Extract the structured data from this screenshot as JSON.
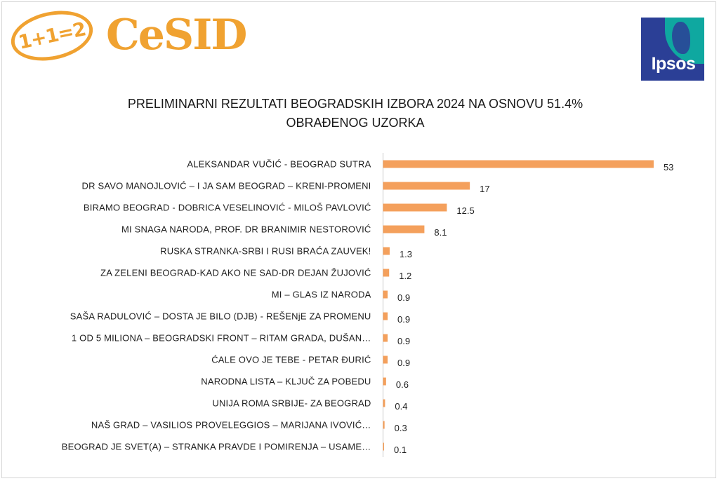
{
  "logos": {
    "left_badge_text": "1+1=2",
    "left_word": "CeSID",
    "right_text": "Ipsos"
  },
  "colors": {
    "bar": "#f4a05c",
    "brand_orange": "#f0a231",
    "ipsos_blue": "#2b3f96",
    "ipsos_teal": "#0fa8a0"
  },
  "chart_data": {
    "type": "bar",
    "orientation": "horizontal",
    "title": "PRELIMINARNI REZULTATI BEOGRADSKIH IZBORA 2024 NA OSNOVU 51.4% OBRAĐENOG UZORKA",
    "title_lines": [
      "PRELIMINARNI REZULTATI BEOGRADSKIH IZBORA 2024 NA OSNOVU 51.4%",
      "OBRAĐENOG UZORKA"
    ],
    "xlim": [
      0,
      55
    ],
    "grid": false,
    "legend": "none",
    "categories": [
      "ALEKSANDAR VUČIĆ - BEOGRAD SUTRA",
      "DR SAVO MANOJLOVIĆ – I JA SAM BEOGRAD – KRENI-PROMENI",
      "BIRAMO BEOGRAD - DOBRICA VESELINOVIĆ - MILOŠ PAVLOVIĆ",
      "MI SNAGA NARODA, PROF. DR BRANIMIR NESTOROVIĆ",
      "RUSKA STRANKA-SRBI I RUSI BRAĆA ZAUVEK!",
      "ZA ZELENI BEOGRAD-KAD AKO NE SAD-DR DEJAN ŽUJOVIĆ",
      "MI – GLAS IZ NARODA",
      "SAŠA RADULOVIĆ – DOSTA JE BILO (DJB) - REŠENjE ZA PROMENU",
      "1 OD 5 MILIONA – BEOGRADSKI FRONT – RITAM GRADA, DUŠAN…",
      "ĆALE OVO JE TEBE - PETAR ĐURIĆ",
      "NARODNA LISTA – KLJUČ ZA POBEDU",
      "UNIJA ROMA SRBIJE- ZA BEOGRAD",
      "NAŠ GRAD – VASILIOS PROVELEGGIOS – MARIJANA IVOVIĆ…",
      "BEOGRAD JE SVET(A) – STRANKA PRAVDE I POMIRENJA – USAME…"
    ],
    "values": [
      53,
      17,
      12.5,
      8.1,
      1.3,
      1.2,
      0.9,
      0.9,
      0.9,
      0.9,
      0.6,
      0.4,
      0.3,
      0.1
    ],
    "value_labels": [
      "53",
      "17",
      "12.5",
      "8.1",
      "1.3",
      "1.2",
      "0.9",
      "0.9",
      "0.9",
      "0.9",
      "0.6",
      "0.4",
      "0.3",
      "0.1"
    ]
  }
}
